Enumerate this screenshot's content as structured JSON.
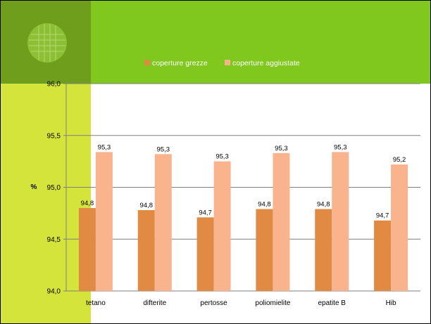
{
  "chart_data": {
    "type": "bar",
    "title": "",
    "xlabel": "",
    "ylabel": "%",
    "ylim": [
      94.0,
      96.0
    ],
    "yticks": [
      "94,0",
      "94,5",
      "95,0",
      "95,5",
      "96,0"
    ],
    "ytick_values": [
      94.0,
      94.5,
      95.0,
      95.5,
      96.0
    ],
    "categories": [
      "tetano",
      "difterite",
      "pertosse",
      "poliomielite",
      "epatite B",
      "Hib"
    ],
    "series": [
      {
        "name": "coperture grezze",
        "color": "#e08a44",
        "values": [
          94.8,
          94.78,
          94.71,
          94.79,
          94.79,
          94.68
        ],
        "labels": [
          "94,8",
          "94,8",
          "94,7",
          "94,8",
          "94,8",
          "94,7"
        ]
      },
      {
        "name": "coperture aggiustate",
        "color": "#f9b48e",
        "values": [
          95.34,
          95.32,
          95.25,
          95.33,
          95.34,
          95.22
        ],
        "labels": [
          "95,3",
          "95,3",
          "95,3",
          "95,3",
          "95,3",
          "95,2"
        ]
      }
    ],
    "grid": true,
    "legend_position": "top"
  },
  "theme": {
    "band_dark": "#6f9e1c",
    "band_green": "#80c81e",
    "band_lime": "#d5e43a",
    "gridline": "#7f7f7f"
  }
}
